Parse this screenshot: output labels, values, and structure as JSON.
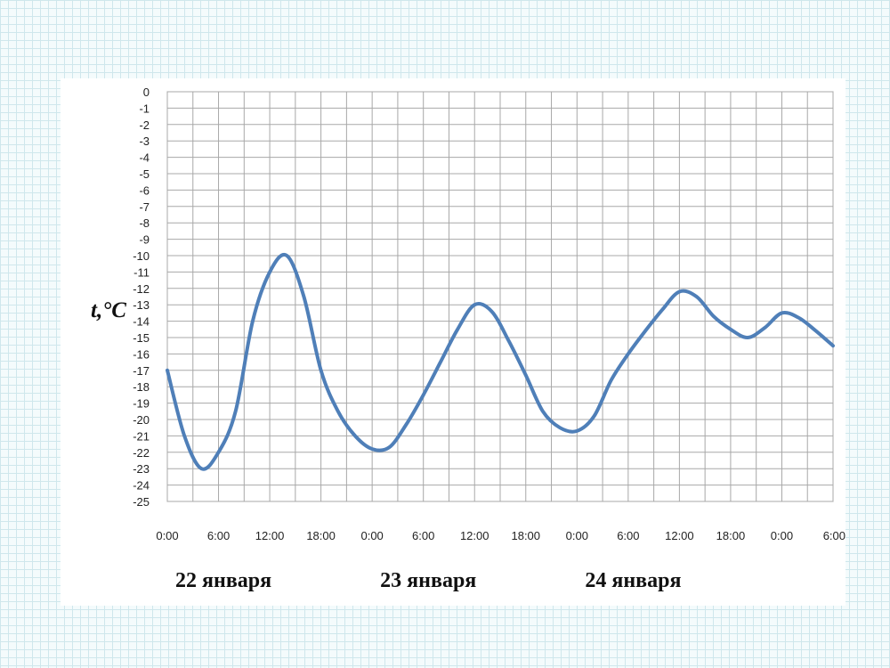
{
  "chart_data": {
    "type": "line",
    "ylabel": "t,°C",
    "xlabel": "",
    "ylim": [
      -25,
      0
    ],
    "yticks": [
      0,
      -1,
      -2,
      -3,
      -4,
      -5,
      -6,
      -7,
      -8,
      -9,
      -10,
      -11,
      -12,
      -13,
      -14,
      -15,
      -16,
      -17,
      -18,
      -19,
      -20,
      -21,
      -22,
      -23,
      -24,
      -25
    ],
    "xlim_hours": [
      0,
      78
    ],
    "xtick_hours": [
      0,
      6,
      12,
      18,
      24,
      30,
      36,
      42,
      48,
      54,
      60,
      66,
      72,
      78
    ],
    "xtick_labels": [
      "0:00",
      "6:00",
      "12:00",
      "18:00",
      "0:00",
      "6:00",
      "12:00",
      "18:00",
      "0:00",
      "6:00",
      "12:00",
      "18:00",
      "0:00",
      "6:00"
    ],
    "day_labels": [
      {
        "text": "22 января",
        "center_hour": 12
      },
      {
        "text": "23 января",
        "center_hour": 36
      },
      {
        "text": "24 января",
        "center_hour": 60
      }
    ],
    "grid": true,
    "series": [
      {
        "color": "#4f7fb8",
        "x_hours": [
          0,
          2,
          4,
          6,
          8,
          10,
          12,
          14,
          16,
          18,
          20,
          22,
          24,
          26,
          28,
          30,
          32,
          34,
          36,
          38,
          40,
          42,
          44,
          46,
          48,
          50,
          52,
          54,
          56,
          58,
          60,
          62,
          64,
          66,
          68,
          70,
          72,
          74,
          76,
          78
        ],
        "values": [
          -17,
          -21,
          -23,
          -22,
          -19.5,
          -14,
          -11,
          -10,
          -12.5,
          -17,
          -19.5,
          -21,
          -21.8,
          -21.7,
          -20.3,
          -18.5,
          -16.5,
          -14.5,
          -13,
          -13.4,
          -15.2,
          -17.3,
          -19.5,
          -20.5,
          -20.7,
          -19.8,
          -17.6,
          -16,
          -14.6,
          -13.3,
          -12.2,
          -12.5,
          -13.7,
          -14.5,
          -15,
          -14.4,
          -13.5,
          -13.8,
          -14.6,
          -15.5
        ]
      }
    ]
  }
}
